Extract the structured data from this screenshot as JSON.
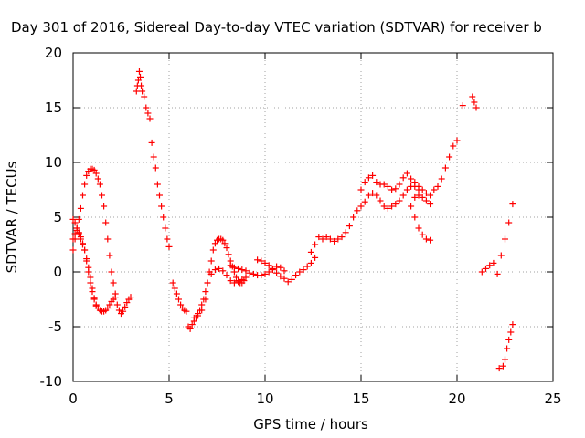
{
  "chart_data": {
    "type": "scatter",
    "title": "Day 301 of 2016, Sidereal Day-to-day VTEC variation (SDTVAR) for receiver b",
    "xlabel": "GPS time / hours",
    "ylabel": "SDTVAR / TECUs",
    "xlim": [
      0,
      25
    ],
    "ylim": [
      -10,
      20
    ],
    "xticks": [
      "0",
      "5",
      "10",
      "15",
      "20",
      "25"
    ],
    "yticks": [
      "-10",
      "-5",
      "0",
      "5",
      "10",
      "15",
      "20"
    ],
    "grid": true,
    "marker": "+",
    "marker_color": "#ff0000",
    "series": [
      {
        "values": [
          [
            0.0,
            2.0
          ],
          [
            0.1,
            3.0
          ],
          [
            0.2,
            4.0
          ],
          [
            0.3,
            4.8
          ],
          [
            0.4,
            5.8
          ],
          [
            0.5,
            7.0
          ],
          [
            0.6,
            8.0
          ],
          [
            0.7,
            8.8
          ],
          [
            0.8,
            9.2
          ],
          [
            0.9,
            9.4
          ],
          [
            1.0,
            9.4
          ],
          [
            1.1,
            9.3
          ],
          [
            1.2,
            9.0
          ],
          [
            1.3,
            8.5
          ],
          [
            1.4,
            8.0
          ],
          [
            1.5,
            7.0
          ],
          [
            1.6,
            6.0
          ],
          [
            1.7,
            4.5
          ],
          [
            1.8,
            3.0
          ],
          [
            1.9,
            1.5
          ],
          [
            2.0,
            0.0
          ],
          [
            2.1,
            -1.0
          ],
          [
            2.2,
            -2.0
          ],
          [
            2.3,
            -3.0
          ],
          [
            2.4,
            -3.5
          ],
          [
            2.5,
            -3.8
          ],
          [
            2.6,
            -3.6
          ],
          [
            2.7,
            -3.2
          ],
          [
            2.8,
            -2.8
          ],
          [
            2.9,
            -2.5
          ],
          [
            3.0,
            -2.3
          ],
          [
            0.0,
            4.8
          ],
          [
            0.1,
            4.5
          ],
          [
            0.2,
            4.0
          ],
          [
            0.3,
            3.5
          ],
          [
            0.4,
            3.0
          ],
          [
            0.5,
            2.5
          ],
          [
            0.6,
            2.0
          ],
          [
            0.7,
            1.0
          ],
          [
            0.8,
            0.0
          ],
          [
            0.9,
            -1.0
          ],
          [
            1.0,
            -1.8
          ],
          [
            1.1,
            -2.5
          ],
          [
            1.2,
            -3.0
          ],
          [
            1.3,
            -3.3
          ],
          [
            1.4,
            -3.5
          ],
          [
            1.5,
            -3.6
          ],
          [
            1.6,
            -3.6
          ],
          [
            1.7,
            -3.5
          ],
          [
            1.8,
            -3.3
          ],
          [
            1.9,
            -3.0
          ],
          [
            2.0,
            -2.7
          ],
          [
            2.1,
            -2.5
          ],
          [
            2.2,
            -2.3
          ],
          [
            0.0,
            3.0
          ],
          [
            0.1,
            3.5
          ],
          [
            0.2,
            3.8
          ],
          [
            0.3,
            3.6
          ],
          [
            0.4,
            3.2
          ],
          [
            0.5,
            2.6
          ],
          [
            0.6,
            2.0
          ],
          [
            0.7,
            1.2
          ],
          [
            0.8,
            0.4
          ],
          [
            0.9,
            -0.5
          ],
          [
            1.0,
            -1.5
          ],
          [
            1.1,
            -2.4
          ],
          [
            1.2,
            -3.1
          ],
          [
            3.3,
            16.5
          ],
          [
            3.35,
            17.0
          ],
          [
            3.4,
            17.5
          ],
          [
            3.45,
            18.3
          ],
          [
            3.5,
            17.8
          ],
          [
            3.55,
            17.0
          ],
          [
            3.6,
            16.5
          ],
          [
            3.7,
            16.0
          ],
          [
            3.8,
            15.0
          ],
          [
            3.9,
            14.5
          ],
          [
            4.0,
            14.0
          ],
          [
            4.1,
            11.8
          ],
          [
            4.2,
            10.5
          ],
          [
            4.3,
            9.5
          ],
          [
            4.4,
            8.0
          ],
          [
            4.5,
            7.0
          ],
          [
            4.6,
            6.0
          ],
          [
            4.7,
            5.0
          ],
          [
            4.8,
            4.0
          ],
          [
            4.9,
            3.0
          ],
          [
            5.0,
            2.3
          ],
          [
            5.2,
            -1.0
          ],
          [
            5.3,
            -1.5
          ],
          [
            5.4,
            -2.0
          ],
          [
            5.5,
            -2.5
          ],
          [
            5.6,
            -3.0
          ],
          [
            5.7,
            -3.3
          ],
          [
            5.8,
            -3.5
          ],
          [
            5.9,
            -3.6
          ],
          [
            6.0,
            -5.0
          ],
          [
            6.1,
            -5.2
          ],
          [
            6.2,
            -4.8
          ],
          [
            6.3,
            -4.5
          ],
          [
            6.4,
            -4.2
          ],
          [
            6.5,
            -3.8
          ],
          [
            6.6,
            -3.5
          ],
          [
            6.7,
            -3.0
          ],
          [
            6.8,
            -2.5
          ],
          [
            6.9,
            -1.8
          ],
          [
            7.0,
            -1.0
          ],
          [
            7.1,
            0.0
          ],
          [
            7.2,
            1.0
          ],
          [
            7.3,
            2.0
          ],
          [
            7.4,
            2.6
          ],
          [
            7.5,
            2.9
          ],
          [
            7.6,
            3.0
          ],
          [
            7.7,
            3.0
          ],
          [
            7.8,
            2.9
          ],
          [
            7.9,
            2.6
          ],
          [
            8.0,
            2.2
          ],
          [
            8.1,
            1.6
          ],
          [
            8.2,
            1.0
          ],
          [
            8.3,
            0.5
          ],
          [
            8.4,
            0.0
          ],
          [
            8.5,
            -0.5
          ],
          [
            8.6,
            -0.8
          ],
          [
            8.7,
            -1.0
          ],
          [
            8.8,
            -1.0
          ],
          [
            8.9,
            -0.8
          ],
          [
            6.3,
            -4.2
          ],
          [
            6.5,
            -4.0
          ],
          [
            6.7,
            -3.5
          ],
          [
            6.9,
            -2.5
          ],
          [
            7.0,
            -1.0
          ],
          [
            7.2,
            -0.2
          ],
          [
            7.4,
            0.2
          ],
          [
            7.6,
            0.3
          ],
          [
            7.8,
            0.1
          ],
          [
            8.0,
            -0.3
          ],
          [
            8.2,
            -0.8
          ],
          [
            8.4,
            -1.0
          ],
          [
            8.6,
            -0.9
          ],
          [
            8.8,
            -0.7
          ],
          [
            9.0,
            -0.5
          ],
          [
            8.2,
            0.6
          ],
          [
            8.4,
            0.4
          ],
          [
            8.6,
            0.3
          ],
          [
            8.8,
            0.2
          ],
          [
            9.0,
            0.1
          ],
          [
            9.2,
            -0.1
          ],
          [
            9.4,
            -0.2
          ],
          [
            9.6,
            -0.3
          ],
          [
            9.8,
            -0.3
          ],
          [
            10.0,
            -0.2
          ],
          [
            10.2,
            0.0
          ],
          [
            10.4,
            0.3
          ],
          [
            10.6,
            0.5
          ],
          [
            10.8,
            0.4
          ],
          [
            11.0,
            0.1
          ],
          [
            9.6,
            1.1
          ],
          [
            9.8,
            1.0
          ],
          [
            10.0,
            0.8
          ],
          [
            10.2,
            0.6
          ],
          [
            10.4,
            0.2
          ],
          [
            10.6,
            -0.1
          ],
          [
            10.8,
            -0.4
          ],
          [
            11.0,
            -0.6
          ],
          [
            11.2,
            -0.9
          ],
          [
            11.4,
            -0.7
          ],
          [
            11.6,
            -0.3
          ],
          [
            11.8,
            0.0
          ],
          [
            12.0,
            0.2
          ],
          [
            12.2,
            0.5
          ],
          [
            12.4,
            0.8
          ],
          [
            12.6,
            1.3
          ],
          [
            12.4,
            1.8
          ],
          [
            12.6,
            2.5
          ],
          [
            12.8,
            3.2
          ],
          [
            13.0,
            3.0
          ],
          [
            13.2,
            3.2
          ],
          [
            13.4,
            3.0
          ],
          [
            13.6,
            2.8
          ],
          [
            13.8,
            3.0
          ],
          [
            14.0,
            3.2
          ],
          [
            14.2,
            3.6
          ],
          [
            14.4,
            4.2
          ],
          [
            14.6,
            5.0
          ],
          [
            14.8,
            5.6
          ],
          [
            15.0,
            6.0
          ],
          [
            15.2,
            6.4
          ],
          [
            15.4,
            7.0
          ],
          [
            15.6,
            7.2
          ],
          [
            15.8,
            7.0
          ],
          [
            16.0,
            6.5
          ],
          [
            16.2,
            6.0
          ],
          [
            16.4,
            5.8
          ],
          [
            16.6,
            6.0
          ],
          [
            16.8,
            6.2
          ],
          [
            17.0,
            6.5
          ],
          [
            17.2,
            7.0
          ],
          [
            17.4,
            7.5
          ],
          [
            17.6,
            7.8
          ],
          [
            17.8,
            7.8
          ],
          [
            18.0,
            7.5
          ],
          [
            15.0,
            7.5
          ],
          [
            15.2,
            8.2
          ],
          [
            15.4,
            8.6
          ],
          [
            15.6,
            8.8
          ],
          [
            15.8,
            8.2
          ],
          [
            16.0,
            8.0
          ],
          [
            16.2,
            8.0
          ],
          [
            16.4,
            7.8
          ],
          [
            16.6,
            7.5
          ],
          [
            16.8,
            7.6
          ],
          [
            17.0,
            8.0
          ],
          [
            17.2,
            8.6
          ],
          [
            17.4,
            9.0
          ],
          [
            17.6,
            8.5
          ],
          [
            17.8,
            8.2
          ],
          [
            18.0,
            7.8
          ],
          [
            18.2,
            7.5
          ],
          [
            18.4,
            7.2
          ],
          [
            18.6,
            7.0
          ],
          [
            17.6,
            6.0
          ],
          [
            17.8,
            5.0
          ],
          [
            18.0,
            4.0
          ],
          [
            18.2,
            3.4
          ],
          [
            18.4,
            3.0
          ],
          [
            18.6,
            2.9
          ],
          [
            17.8,
            6.8
          ],
          [
            18.0,
            7.0
          ],
          [
            18.2,
            6.8
          ],
          [
            18.4,
            6.5
          ],
          [
            18.6,
            6.2
          ],
          [
            18.8,
            7.5
          ],
          [
            19.0,
            7.8
          ],
          [
            19.2,
            8.5
          ],
          [
            19.4,
            9.5
          ],
          [
            19.6,
            10.5
          ],
          [
            19.8,
            11.5
          ],
          [
            20.0,
            12.0
          ],
          [
            20.3,
            15.2
          ],
          [
            20.8,
            16.0
          ],
          [
            20.9,
            15.5
          ],
          [
            21.0,
            15.0
          ],
          [
            21.3,
            0.0
          ],
          [
            21.5,
            0.3
          ],
          [
            21.7,
            0.6
          ],
          [
            21.9,
            0.8
          ],
          [
            22.1,
            -0.2
          ],
          [
            22.3,
            1.5
          ],
          [
            22.5,
            3.0
          ],
          [
            22.7,
            4.5
          ],
          [
            22.9,
            6.2
          ],
          [
            22.2,
            -8.8
          ],
          [
            22.4,
            -8.6
          ],
          [
            22.5,
            -8.0
          ],
          [
            22.6,
            -7.0
          ],
          [
            22.7,
            -6.2
          ],
          [
            22.8,
            -5.5
          ],
          [
            22.9,
            -4.8
          ]
        ]
      }
    ]
  }
}
